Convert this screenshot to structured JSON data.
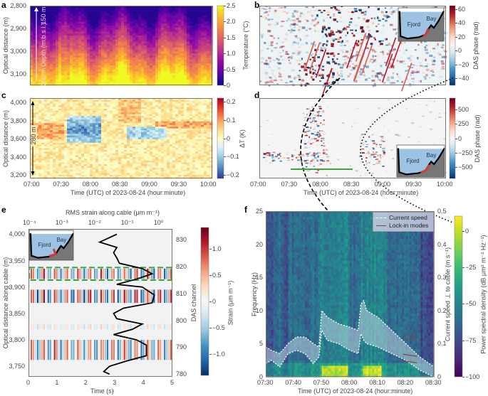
{
  "chart_data": [
    {
      "panel": "a",
      "type": "heatmap",
      "xlabel": "",
      "ylabel": "Optical distance (m)",
      "yticks": [
        "2,800",
        "2,900",
        "3,000",
        "3,100"
      ],
      "ylim": [
        2800,
        3150
      ],
      "xlim": [
        "07:00",
        "10:00"
      ],
      "colorbar": {
        "label": "Temperature (°C)",
        "ticks": [
          "2.5",
          "2.0",
          "1.5",
          "1.0",
          "0.5",
          "0"
        ],
        "range": [
          0,
          2.5
        ],
        "colormap": "plasma"
      },
      "annotations": [
        "150 m",
        "Depth (m.b.s.l.)",
        "280 m"
      ]
    },
    {
      "panel": "b",
      "type": "heatmap",
      "xlim": [
        "07:00",
        "10:00"
      ],
      "colorbar": {
        "label": "DAS phase (rad)",
        "ticks": [
          "60",
          "40",
          "20",
          "0",
          "−20",
          "−40"
        ],
        "range": [
          -50,
          65
        ],
        "colormap": "RdBu_r"
      },
      "inset": {
        "labels": [
          "Fjord",
          "Bay"
        ]
      }
    },
    {
      "panel": "c",
      "type": "heatmap",
      "xlabel": "Time (UTC) of 2023-08-24 (hour:minute)",
      "ylabel": "Optical distance (m)",
      "xticks": [
        "07:00",
        "07:30",
        "08:00",
        "08:30",
        "09:00",
        "09:30",
        "10:00"
      ],
      "yticks": [
        "4,000",
        "3,800",
        "3,600",
        "3,400",
        "3,200"
      ],
      "ylim": [
        3160,
        4050
      ],
      "colorbar": {
        "label": "ΔT (K)",
        "ticks": [
          "0.2",
          "0.1",
          "0",
          "−0.1",
          "−0.2"
        ],
        "range": [
          -0.22,
          0.22
        ],
        "colormap": "RdYlBu_r"
      },
      "annotations": [
        "280 m"
      ]
    },
    {
      "panel": "d",
      "type": "heatmap",
      "xlabel": "Time (UTC) of 2023-08-24 (hour:minute)",
      "xticks": [
        "07:00",
        "07:30",
        "08:00",
        "08:30",
        "09:00",
        "09:30",
        "10:00"
      ],
      "colorbar": {
        "label": "DAS phase (rad)",
        "ticks": [
          "500",
          "250",
          "0",
          "−250",
          "−500"
        ],
        "range": [
          -700,
          700
        ],
        "colormap": "RdBu_r"
      },
      "inset": {
        "labels": [
          "Fjord",
          "Bay"
        ]
      }
    },
    {
      "panel": "e",
      "type": "heatmap",
      "xlabel": "Time (s)",
      "xticks": [
        "0",
        "1",
        "2",
        "3",
        "4",
        "5"
      ],
      "xlim": [
        0,
        5
      ],
      "top_xlabel": "RMS strain along cable (μm m⁻¹)",
      "top_xticks": [
        "10⁻⁴",
        "10⁻³",
        "10⁻²",
        "10⁻¹",
        "10⁰"
      ],
      "ylabel": "Optical distance along cable (m)",
      "yticks": [
        "4,000",
        "3,950",
        "3,900",
        "3,850",
        "3,800",
        "3,750"
      ],
      "ylim": [
        3730,
        4010
      ],
      "right_ylabel": "DAS channel",
      "right_yticks": [
        "830",
        "820",
        "810",
        "800",
        "790",
        "780"
      ],
      "colorbar": {
        "label": "Strain (μm m⁻¹)",
        "ticks": [
          "1.0",
          "0.5",
          "0",
          "−0.5",
          "−1.0"
        ],
        "range": [
          -1.4,
          1.4
        ],
        "colormap": "RdBu_r"
      },
      "inset": {
        "labels": [
          "Fjord",
          "Bay"
        ]
      },
      "rms_profile": {
        "y": [
          4000,
          3985,
          3975,
          3965,
          3955,
          3945,
          3935,
          3925,
          3915,
          3905,
          3900,
          3885,
          3870,
          3860,
          3850,
          3840,
          3830,
          3820,
          3810,
          3800,
          3790,
          3780,
          3770,
          3760,
          3750,
          3740,
          3735
        ],
        "x": [
          0.05,
          0.015,
          0.05,
          0.04,
          0.05,
          0.06,
          0.3,
          0.6,
          0.2,
          0.05,
          0.3,
          0.7,
          0.6,
          0.08,
          0.04,
          0.05,
          0.3,
          0.15,
          0.04,
          0.2,
          0.4,
          0.4,
          0.4,
          0.1,
          0.03,
          0.02,
          0.03
        ]
      }
    },
    {
      "panel": "f",
      "type": "heatmap",
      "xlabel": "Time (UTC) of 2023-08-24 (hour:minute)",
      "xticks": [
        "07:30",
        "07:40",
        "07:50",
        "08:00",
        "08:10",
        "08:20",
        "08:30"
      ],
      "ylabel": "Frequency (Hz)",
      "yticks": [
        "25",
        "20",
        "15",
        "10",
        "5",
        "0"
      ],
      "ylim": [
        0,
        25
      ],
      "right_ylabel": "Current speed ⊥ to cable (m s⁻¹)",
      "right_yticks": [
        "0.5",
        "0.4",
        "0.3",
        "0.2",
        "0.1",
        "0"
      ],
      "right_ylim": [
        0,
        0.5
      ],
      "colorbar": {
        "label": "Power spectral density (dB μm² m⁻² Hz⁻¹)",
        "ticks": [
          "0",
          "−25",
          "−50",
          "−75",
          "−100"
        ],
        "range": [
          -100,
          10
        ],
        "colormap": "viridis"
      },
      "legend": {
        "position": "top-right",
        "entries": [
          "Current speed",
          "Lock-in modes"
        ]
      },
      "current_speed_upper": {
        "t_min": [
          0,
          2,
          5,
          8,
          11,
          14,
          17,
          19,
          20,
          22,
          26,
          30,
          33,
          34,
          35,
          36,
          40,
          45,
          50,
          55,
          60
        ],
        "speed": [
          0.09,
          0.08,
          0.07,
          0.1,
          0.12,
          0.12,
          0.1,
          0.09,
          0.2,
          0.18,
          0.16,
          0.15,
          0.14,
          0.22,
          0.23,
          0.2,
          0.18,
          0.14,
          0.1,
          0.06,
          0.03
        ]
      },
      "current_speed_lower": {
        "t_min": [
          0,
          2,
          5,
          8,
          11,
          14,
          17,
          19,
          20,
          22,
          26,
          30,
          33,
          34,
          35,
          36,
          40,
          45,
          50,
          55,
          60
        ],
        "speed": [
          0.04,
          0.05,
          0.03,
          0.07,
          0.08,
          0.07,
          0.04,
          0.06,
          0.14,
          0.11,
          0.1,
          0.08,
          0.07,
          0.13,
          0.11,
          0.1,
          0.09,
          0.07,
          0.05,
          0.02,
          0.0
        ]
      }
    }
  ],
  "labels": {
    "a": "a",
    "b": "b",
    "c": "c",
    "d": "d",
    "e": "e",
    "f": "f"
  }
}
